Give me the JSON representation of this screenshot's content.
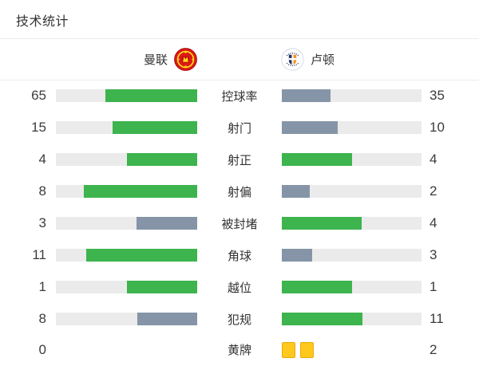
{
  "title": "技术统计",
  "teams": {
    "home": {
      "name": "曼联",
      "badge_icon": "manchester-united-crest"
    },
    "away": {
      "name": "卢顿",
      "badge_icon": "luton-town-crest"
    }
  },
  "colors": {
    "green_bar": "#3db44d",
    "slate_bar": "#8595a7",
    "bar_background": "#ebebeb",
    "divider": "#ececec",
    "yellow_card": "#ffc81f",
    "yellow_card_border": "#eda908",
    "value_text": "#3c3c3c",
    "label_text": "#333333"
  },
  "stats": [
    {
      "label": "控球率",
      "home": 65,
      "away": 35,
      "type": "bar",
      "home_style": "green",
      "away_style": "slate"
    },
    {
      "label": "射门",
      "home": 15,
      "away": 10,
      "type": "bar",
      "home_style": "green",
      "away_style": "slate"
    },
    {
      "label": "射正",
      "home": 4,
      "away": 4,
      "type": "bar",
      "home_style": "green",
      "away_style": "green"
    },
    {
      "label": "射偏",
      "home": 8,
      "away": 2,
      "type": "bar",
      "home_style": "green",
      "away_style": "slate"
    },
    {
      "label": "被封堵",
      "home": 3,
      "away": 4,
      "type": "bar",
      "home_style": "slate",
      "away_style": "green"
    },
    {
      "label": "角球",
      "home": 11,
      "away": 3,
      "type": "bar",
      "home_style": "green",
      "away_style": "slate"
    },
    {
      "label": "越位",
      "home": 1,
      "away": 1,
      "type": "bar",
      "home_style": "green",
      "away_style": "green"
    },
    {
      "label": "犯规",
      "home": 8,
      "away": 11,
      "type": "bar",
      "home_style": "slate",
      "away_style": "green"
    },
    {
      "label": "黄牌",
      "home": 0,
      "away": 2,
      "type": "cards",
      "home_cards": 0,
      "away_cards": 2
    }
  ]
}
